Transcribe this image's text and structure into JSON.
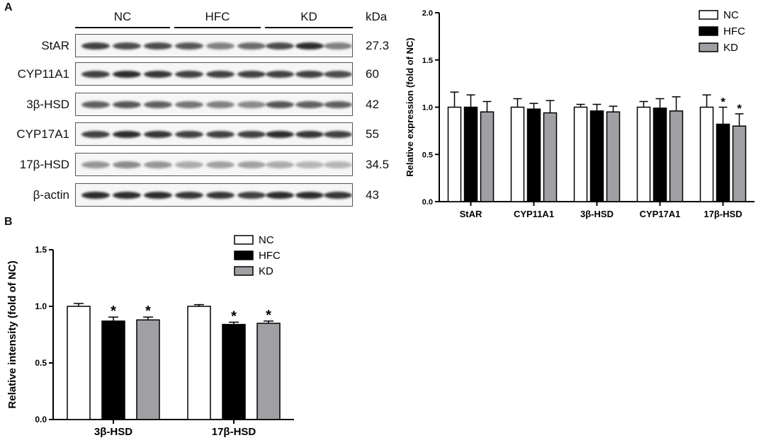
{
  "panel_A": {
    "label": "A",
    "blot": {
      "groups": [
        "NC",
        "HFC",
        "KD"
      ],
      "kda_header": "kDa",
      "rows": [
        {
          "protein": "StAR",
          "kda": "27.3",
          "intensities": [
            0.85,
            0.8,
            0.8,
            0.75,
            0.55,
            0.65,
            0.8,
            0.95,
            0.55
          ]
        },
        {
          "protein": "CYP11A1",
          "kda": "60",
          "intensities": [
            0.85,
            0.95,
            0.9,
            0.85,
            0.85,
            0.85,
            0.85,
            0.85,
            0.8
          ]
        },
        {
          "protein": "3β-HSD",
          "kda": "42",
          "intensities": [
            0.7,
            0.75,
            0.7,
            0.6,
            0.55,
            0.5,
            0.75,
            0.7,
            0.7
          ]
        },
        {
          "protein": "CYP17A1",
          "kda": "55",
          "intensities": [
            0.85,
            0.95,
            0.9,
            0.85,
            0.85,
            0.85,
            0.95,
            0.9,
            0.85
          ]
        },
        {
          "protein": "17β-HSD",
          "kda": "34.5",
          "intensities": [
            0.45,
            0.5,
            0.45,
            0.35,
            0.4,
            0.4,
            0.35,
            0.3,
            0.3
          ]
        },
        {
          "protein": "β-actin",
          "kda": "43",
          "intensities": [
            0.95,
            0.95,
            0.95,
            0.9,
            0.9,
            0.85,
            0.95,
            0.95,
            0.9
          ]
        }
      ]
    }
  },
  "panel_B": {
    "label": "B"
  },
  "colors": {
    "NC": "#ffffff",
    "HFC": "#000000",
    "KD": "#a0a0a4",
    "axis": "#000000"
  },
  "chart_data": [
    {
      "id": "mrna_chart",
      "type": "bar",
      "title": "",
      "xlabel": "",
      "ylabel": "Relative expression (fold of NC)",
      "ylim": [
        0,
        2.0
      ],
      "yticks": [
        "0.0",
        "0.5",
        "1.0",
        "1.5",
        "2.0"
      ],
      "categories": [
        "StAR",
        "CYP11A1",
        "3β-HSD",
        "CYP17A1",
        "17β-HSD"
      ],
      "legend_position": "top-right",
      "series": [
        {
          "name": "NC",
          "values": [
            1.0,
            1.0,
            1.0,
            1.0,
            1.0
          ],
          "errors": [
            0.16,
            0.09,
            0.03,
            0.06,
            0.13
          ],
          "sig": [
            false,
            false,
            false,
            false,
            false
          ]
        },
        {
          "name": "HFC",
          "values": [
            1.0,
            0.98,
            0.96,
            0.99,
            0.82
          ],
          "errors": [
            0.13,
            0.06,
            0.07,
            0.1,
            0.18
          ],
          "sig": [
            false,
            false,
            false,
            false,
            true
          ]
        },
        {
          "name": "KD",
          "values": [
            0.95,
            0.94,
            0.95,
            0.96,
            0.8
          ],
          "errors": [
            0.11,
            0.13,
            0.06,
            0.15,
            0.13
          ],
          "sig": [
            false,
            false,
            false,
            false,
            true
          ]
        }
      ],
      "significance_marker": "*"
    },
    {
      "id": "protein_chart",
      "type": "bar",
      "title": "",
      "xlabel": "",
      "ylabel": "Relative intensity (fold of NC)",
      "ylim": [
        0,
        1.5
      ],
      "yticks": [
        "0.0",
        "0.5",
        "1.0",
        "1.5"
      ],
      "categories": [
        "3β-HSD",
        "17β-HSD"
      ],
      "legend_position": "top-right",
      "series": [
        {
          "name": "NC",
          "values": [
            1.0,
            1.0
          ],
          "errors": [
            0.025,
            0.015
          ],
          "sig": [
            false,
            false
          ]
        },
        {
          "name": "HFC",
          "values": [
            0.87,
            0.84
          ],
          "errors": [
            0.035,
            0.02
          ],
          "sig": [
            true,
            true
          ]
        },
        {
          "name": "KD",
          "values": [
            0.88,
            0.85
          ],
          "errors": [
            0.025,
            0.02
          ],
          "sig": [
            true,
            true
          ]
        }
      ],
      "significance_marker": "*"
    }
  ]
}
